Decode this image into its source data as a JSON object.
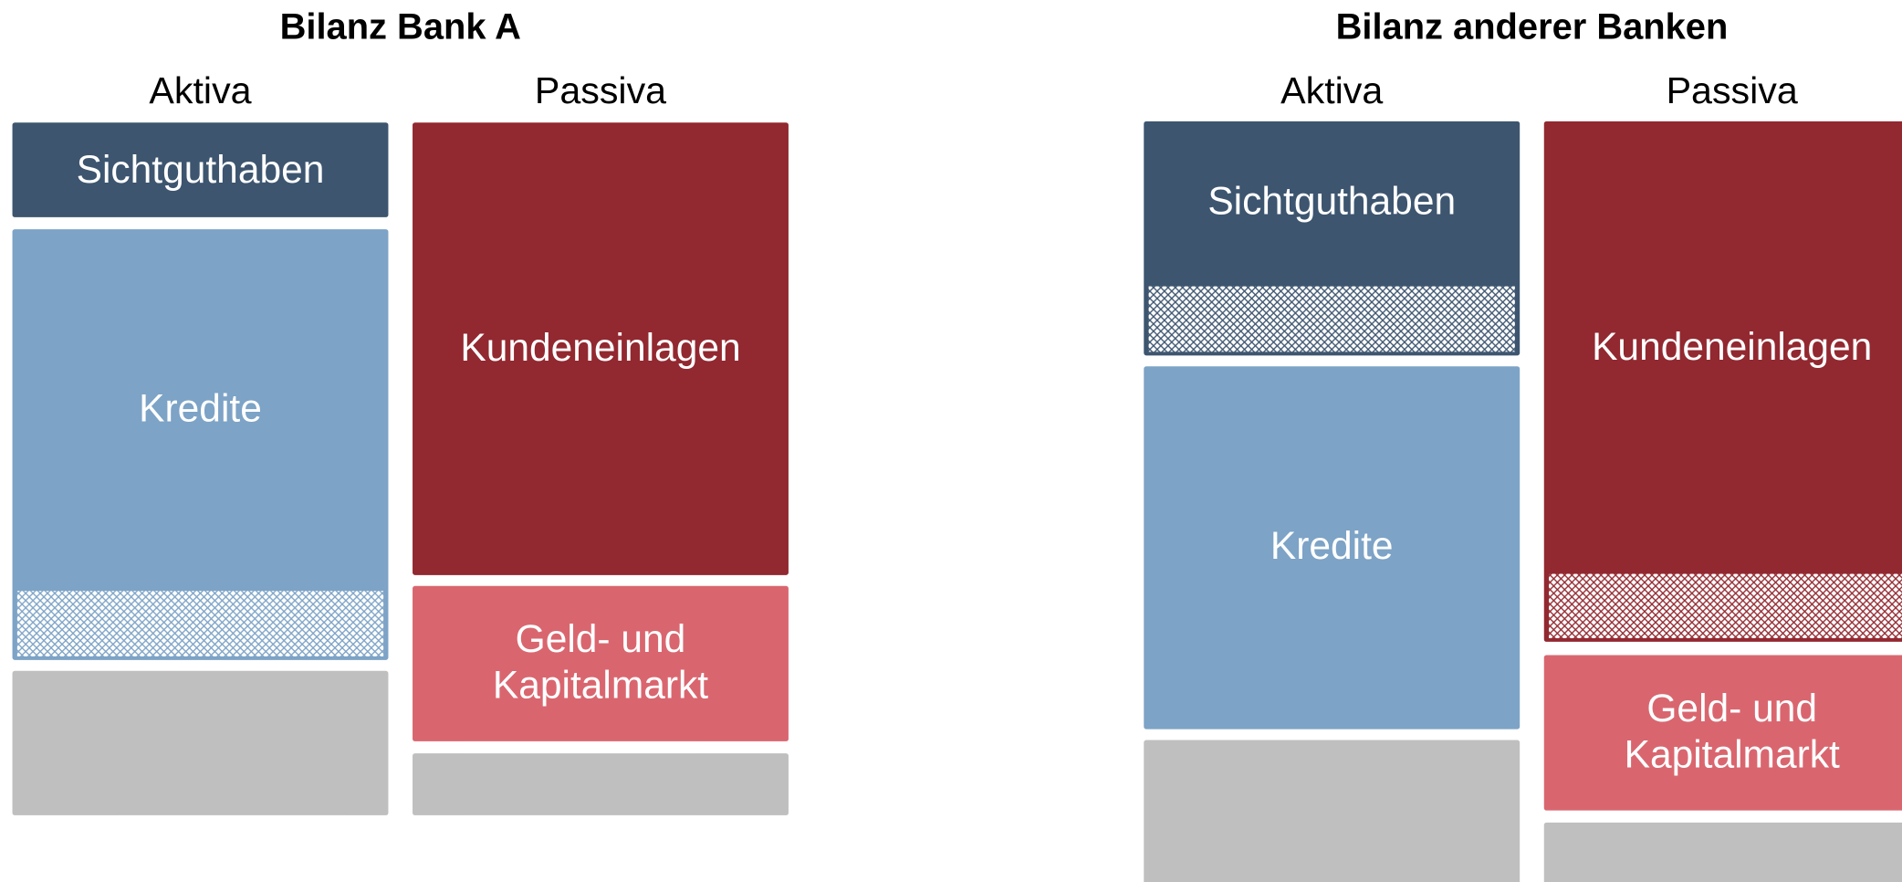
{
  "panels": [
    {
      "title": "Bilanz Bank A",
      "columns": [
        {
          "header": "Aktiva",
          "blocks": [
            {
              "label": [
                "Sichtguthaben"
              ],
              "color": "#3d556f"
            },
            {
              "label": [
                "Kredite"
              ],
              "color": "#7da3c6",
              "hatched": true
            },
            {
              "color": "#bfbfbf"
            }
          ]
        },
        {
          "header": "Passiva",
          "blocks": [
            {
              "label": [
                "Kundeneinlagen"
              ],
              "color": "#922830"
            },
            {
              "label": [
                "Geld- und",
                "Kapitalmarkt"
              ],
              "color": "#d9666f"
            },
            {
              "color": "#bfbfbf"
            }
          ]
        }
      ]
    },
    {
      "title": "Bilanz anderer Banken",
      "columns": [
        {
          "header": "Aktiva",
          "blocks": [
            {
              "label": [
                "Sichtguthaben"
              ],
              "color": "#3d556f",
              "hatched": true
            },
            {
              "label": [
                "Kredite"
              ],
              "color": "#7da3c6"
            },
            {
              "color": "#bfbfbf"
            }
          ]
        },
        {
          "header": "Passiva",
          "blocks": [
            {
              "label": [
                "Kundeneinlagen"
              ],
              "color": "#922830",
              "hatched": true
            },
            {
              "label": [
                "Geld- und",
                "Kapitalmarkt"
              ],
              "color": "#d9666f"
            },
            {
              "color": "#bfbfbf"
            }
          ]
        }
      ]
    }
  ]
}
